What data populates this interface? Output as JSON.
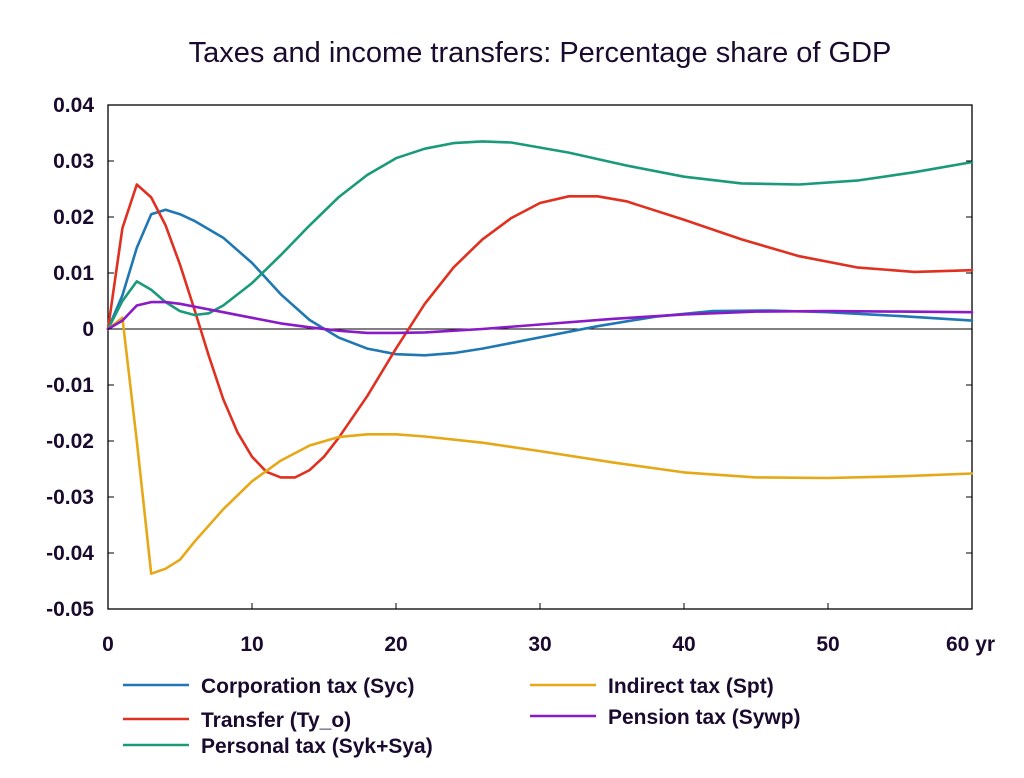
{
  "chart_data": {
    "type": "line",
    "title": "Taxes and income transfers: Percentage share of GDP",
    "xlabel": "",
    "ylabel": "",
    "x_unit_label": "yr",
    "xlim": [
      0,
      60
    ],
    "ylim": [
      -0.05,
      0.04
    ],
    "xticks": [
      0,
      10,
      20,
      30,
      40,
      50,
      60
    ],
    "xtick_labels": [
      "0",
      "10",
      "20",
      "30",
      "40",
      "50",
      "60 yr"
    ],
    "yticks": [
      0.04,
      0.03,
      0.02,
      0.01,
      0,
      -0.01,
      -0.02,
      -0.03,
      -0.04,
      -0.05
    ],
    "ytick_labels": [
      "0.04",
      "0.03",
      "0.02",
      "0.01",
      "0",
      "-0.01",
      "-0.02",
      "-0.03",
      "-0.04",
      "-0.05"
    ],
    "zero_line": true,
    "grid": false,
    "legend_position": "bottom",
    "series": [
      {
        "name": "Corporation tax (Syc)",
        "color": "#1f77b4",
        "x": [
          0,
          1,
          2,
          3,
          4,
          5,
          6,
          8,
          10,
          12,
          14,
          16,
          18,
          20,
          22,
          24,
          26,
          30,
          34,
          38,
          42,
          46,
          50,
          55,
          60
        ],
        "y": [
          0,
          0.006,
          0.0145,
          0.0205,
          0.0213,
          0.0205,
          0.0193,
          0.0163,
          0.0118,
          0.0062,
          0.0016,
          -0.0015,
          -0.0035,
          -0.0045,
          -0.0047,
          -0.0043,
          -0.0035,
          -0.0015,
          0.0005,
          0.0022,
          0.0032,
          0.0033,
          0.003,
          0.0023,
          0.0015
        ]
      },
      {
        "name": "Transfer (Ty_o)",
        "color": "#e03020",
        "x": [
          0,
          1,
          2,
          3,
          4,
          5,
          6,
          7,
          8,
          9,
          10,
          11,
          12,
          13,
          14,
          15,
          16,
          18,
          20,
          22,
          24,
          26,
          28,
          30,
          32,
          34,
          36,
          40,
          44,
          48,
          52,
          56,
          60
        ],
        "y": [
          0,
          0.018,
          0.0258,
          0.0235,
          0.0185,
          0.0115,
          0.0035,
          -0.0048,
          -0.0125,
          -0.0185,
          -0.0228,
          -0.0255,
          -0.0265,
          -0.0265,
          -0.0252,
          -0.0228,
          -0.0195,
          -0.012,
          -0.0035,
          0.0045,
          0.011,
          0.016,
          0.0198,
          0.0225,
          0.0237,
          0.0237,
          0.0228,
          0.0195,
          0.016,
          0.013,
          0.011,
          0.0102,
          0.0105
        ]
      },
      {
        "name": "Personal tax (Syk+Sya)",
        "color": "#1a9a7a",
        "x": [
          0,
          1,
          2,
          3,
          4,
          5,
          6,
          7,
          8,
          10,
          12,
          14,
          16,
          18,
          20,
          22,
          24,
          26,
          28,
          32,
          36,
          40,
          44,
          48,
          52,
          56,
          60
        ],
        "y": [
          0,
          0.005,
          0.0085,
          0.007,
          0.0048,
          0.0032,
          0.0025,
          0.0028,
          0.0042,
          0.0082,
          0.0132,
          0.0185,
          0.0235,
          0.0275,
          0.0305,
          0.0322,
          0.0332,
          0.0335,
          0.0333,
          0.0315,
          0.0292,
          0.0272,
          0.026,
          0.0258,
          0.0265,
          0.028,
          0.0298
        ]
      },
      {
        "name": "Indirect tax (Spt)",
        "color": "#e6a817",
        "x": [
          0,
          1,
          2,
          3,
          4,
          5,
          6,
          8,
          10,
          12,
          14,
          16,
          18,
          20,
          22,
          26,
          30,
          35,
          40,
          45,
          50,
          55,
          60
        ],
        "y": [
          0,
          0.002,
          -0.02,
          -0.0437,
          -0.0428,
          -0.0412,
          -0.038,
          -0.0322,
          -0.0272,
          -0.0235,
          -0.0208,
          -0.0193,
          -0.0188,
          -0.0188,
          -0.0192,
          -0.0203,
          -0.0218,
          -0.0238,
          -0.0256,
          -0.0265,
          -0.0266,
          -0.0263,
          -0.0258
        ]
      },
      {
        "name": "Pension tax (Sywp)",
        "color": "#8a1ac6",
        "x": [
          0,
          1,
          2,
          3,
          4,
          5,
          6,
          8,
          10,
          12,
          14,
          16,
          18,
          20,
          22,
          24,
          26,
          30,
          35,
          40,
          45,
          50,
          55,
          60
        ],
        "y": [
          0,
          0.0015,
          0.0042,
          0.0048,
          0.0048,
          0.0045,
          0.004,
          0.003,
          0.002,
          0.001,
          0.0003,
          -0.0003,
          -0.0007,
          -0.0007,
          -0.0006,
          -0.0003,
          0,
          0.0008,
          0.0018,
          0.0026,
          0.0031,
          0.0032,
          0.0031,
          0.003
        ]
      }
    ]
  }
}
